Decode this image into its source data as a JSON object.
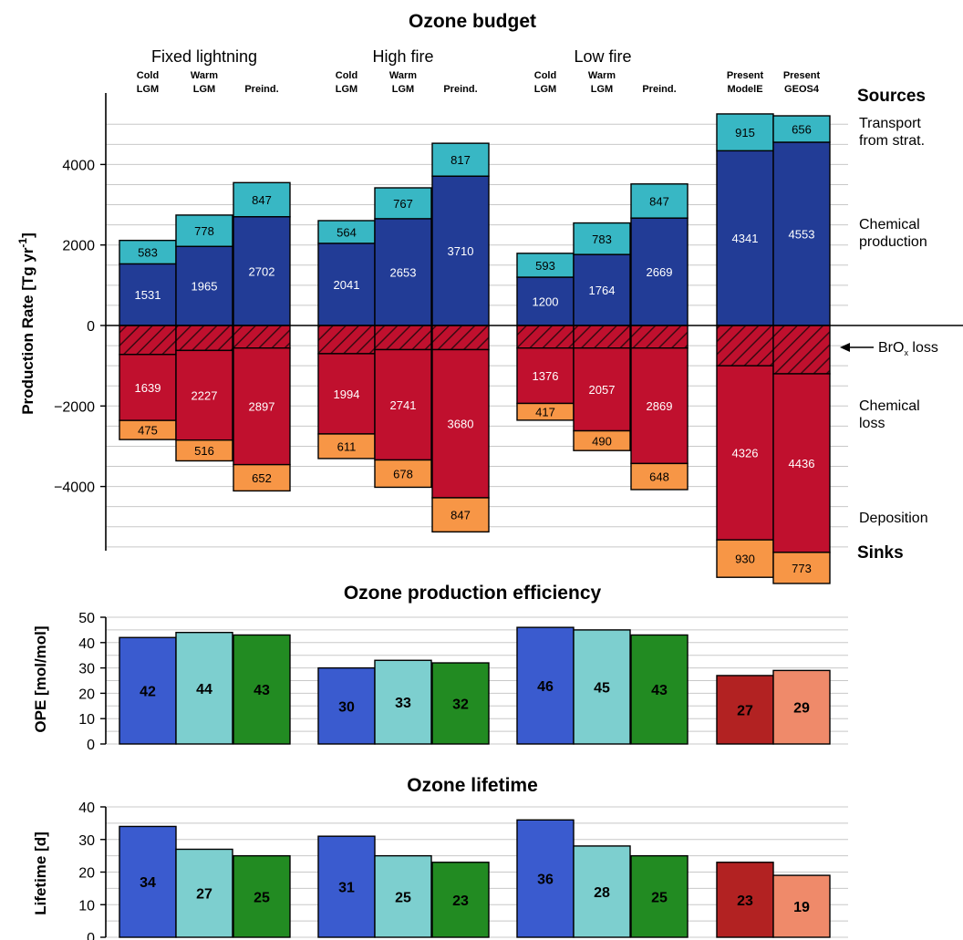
{
  "colors": {
    "transport": "#38b7c4",
    "chem_prod": "#223c96",
    "bro_hatch": "#c0102e",
    "chem_loss": "#c0102e",
    "deposition": "#f79646",
    "blue": "#3a5bcf",
    "lightcyan": "#7dcfcf",
    "green": "#228b22",
    "darkred": "#b22222",
    "salmon": "#ef8a6a"
  },
  "chart_data": [
    {
      "type": "bar",
      "title": "Ozone budget",
      "ylabel": "Production Rate [Tg yr",
      "ylabel_sup": "-1",
      "ylabel_end": "]",
      "ylim": [
        -5500,
        5800
      ],
      "yticks": [
        4000,
        2000,
        0,
        -2000,
        -4000
      ],
      "ytick_labels": [
        "4000",
        "2000",
        "0",
        "−2000",
        "−4000"
      ],
      "grid": true,
      "groups": [
        "Fixed lightning",
        "High fire",
        "Low fire"
      ],
      "categories": [
        {
          "l1": "Cold",
          "l2": "LGM"
        },
        {
          "l1": "Warm",
          "l2": "LGM"
        },
        {
          "l1": "",
          "l2": "Preind."
        },
        {
          "l1": "Cold",
          "l2": "LGM"
        },
        {
          "l1": "Warm",
          "l2": "LGM"
        },
        {
          "l1": "",
          "l2": "Preind."
        },
        {
          "l1": "Cold",
          "l2": "LGM"
        },
        {
          "l1": "Warm",
          "l2": "LGM"
        },
        {
          "l1": "",
          "l2": "Preind."
        },
        {
          "l1": "Present",
          "l2": "ModelE"
        },
        {
          "l1": "Present",
          "l2": "GEOS4"
        }
      ],
      "series": [
        {
          "name": "Transport from strat.",
          "values": [
            583,
            778,
            847,
            564,
            767,
            817,
            593,
            783,
            847,
            915,
            656
          ]
        },
        {
          "name": "Chemical production",
          "values": [
            1531,
            1965,
            2702,
            2041,
            2653,
            3710,
            1200,
            1764,
            2669,
            4341,
            4553
          ]
        },
        {
          "name": "BrOx loss",
          "values": [
            720,
            620,
            560,
            700,
            600,
            600,
            560,
            560,
            560,
            1000,
            1200
          ]
        },
        {
          "name": "Chemical loss",
          "values": [
            1639,
            2227,
            2897,
            1994,
            2741,
            3680,
            1376,
            2057,
            2869,
            4326,
            4436
          ]
        },
        {
          "name": "Deposition",
          "values": [
            475,
            516,
            652,
            611,
            678,
            847,
            417,
            490,
            648,
            930,
            773
          ]
        }
      ],
      "side_labels": {
        "sources": "Sources",
        "transport_1": "Transport",
        "transport_2": "from strat.",
        "chem_prod_1": "Chemical",
        "chem_prod_2": "production",
        "bro_main": "BrO",
        "bro_sub": "x",
        "bro_end": " loss",
        "chem_loss_1": "Chemical",
        "chem_loss_2": "loss",
        "deposition": "Deposition",
        "sinks": "Sinks"
      }
    },
    {
      "type": "bar",
      "title": "Ozone production efficiency",
      "ylabel": "OPE [mol/mol]",
      "ylim": [
        0,
        50
      ],
      "yticks": [
        0,
        10,
        20,
        30,
        40,
        50
      ],
      "grid": true,
      "values": [
        42,
        44,
        43,
        30,
        33,
        32,
        46,
        45,
        43,
        27,
        29
      ]
    },
    {
      "type": "bar",
      "title": "Ozone lifetime",
      "ylabel": "Lifetime [d]",
      "ylim": [
        0,
        40
      ],
      "yticks": [
        0,
        10,
        20,
        30,
        40
      ],
      "grid": true,
      "values": [
        34,
        27,
        25,
        31,
        25,
        23,
        36,
        28,
        25,
        23,
        19
      ]
    }
  ]
}
